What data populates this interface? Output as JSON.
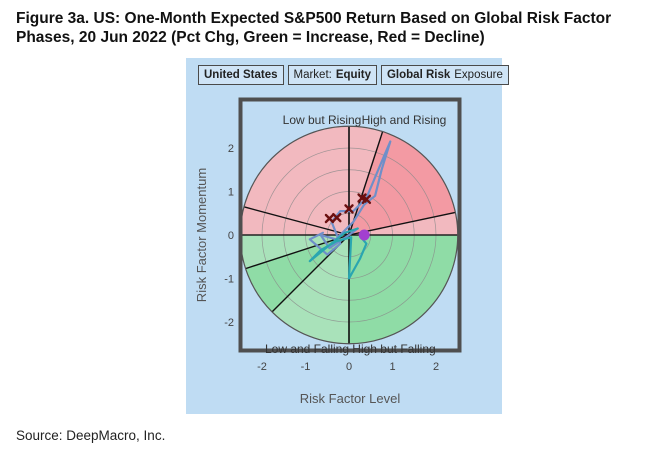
{
  "figure": {
    "title_line1": "Figure 3a. US: One-Month Expected S&P500 Return Based on Global Risk Factor",
    "title_line2": "Phases, 20 Jun 2022 (Pct Chg, Green = Increase, Red = Decline)",
    "source": "Source: DeepMacro, Inc."
  },
  "selectors": {
    "country": "United States",
    "market_prefix": "Market:",
    "market_value": "Equity",
    "factor_value": "Global Risk",
    "factor_suffix": "Exposure"
  },
  "chart_data": {
    "type": "scatter",
    "xlabel": "Risk Factor Level",
    "ylabel": "Risk Factor Momentum",
    "xlim": [
      -2.5,
      2.5
    ],
    "ylim": [
      -2.45,
      2.45
    ],
    "xticks": [
      -2,
      -1,
      0,
      1,
      2
    ],
    "yticks": [
      2,
      1,
      0,
      -1,
      -2
    ],
    "radius": 2.5,
    "ring_step": 0.5,
    "grid": true,
    "quadrant_labels": {
      "top_left": "Low but Rising",
      "top_right": "High and Rising",
      "bottom_left": "Low and Falling",
      "bottom_right": "High but Falling"
    },
    "sector_boundary_angles_deg": [
      12,
      72,
      90,
      165,
      198,
      225,
      270
    ],
    "colors": {
      "decline_sector": "#f2b9bf",
      "decline_sector_strong": "#f39aa3",
      "increase_sector": "#a9e2ba",
      "increase_sector_strong": "#8fdca6",
      "border": "#4f4f4f",
      "history_path_old": "#6f8fc9",
      "history_path_recent": "#2aa6b0",
      "marker_x": "#6b1010",
      "current_point": "#a23fd0"
    },
    "series": [
      {
        "points": [
          [
            -0.6,
            0.05
          ],
          [
            -0.9,
            -0.1
          ],
          [
            -0.5,
            -0.45
          ],
          [
            -0.2,
            -0.2
          ],
          [
            -0.4,
            0.3
          ],
          [
            -0.2,
            0.55
          ],
          [
            0.1,
            0.55
          ],
          [
            0.4,
            0.85
          ],
          [
            0.8,
            1.8
          ],
          [
            0.95,
            2.15
          ],
          [
            0.75,
            1.5
          ],
          [
            0.6,
            0.9
          ],
          [
            0.35,
            0.7
          ],
          [
            0.1,
            0.3
          ],
          [
            -0.3,
            -0.1
          ],
          [
            -0.65,
            0.0
          ],
          [
            -0.45,
            -0.3
          ],
          [
            0.0,
            0.0
          ],
          [
            0.2,
            0.15
          ]
        ]
      },
      {
        "points": [
          [
            0.2,
            0.15
          ],
          [
            -0.1,
            0.05
          ],
          [
            -0.9,
            -0.6
          ],
          [
            -0.65,
            -0.35
          ],
          [
            -0.3,
            -0.15
          ],
          [
            0.05,
            -0.05
          ],
          [
            0.0,
            -1.0
          ],
          [
            0.25,
            -0.55
          ],
          [
            0.4,
            -0.2
          ],
          [
            0.25,
            -0.02
          ]
        ]
      }
    ],
    "x_markers": [
      [
        -0.45,
        0.38
      ],
      [
        -0.28,
        0.4
      ],
      [
        0.0,
        0.6
      ],
      [
        0.3,
        0.85
      ],
      [
        0.4,
        0.82
      ]
    ],
    "current_point": [
      0.35,
      0.0
    ]
  }
}
